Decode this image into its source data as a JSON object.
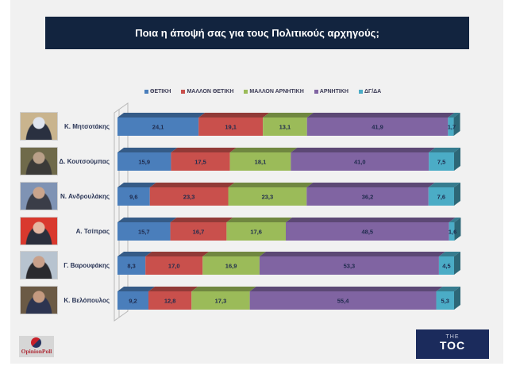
{
  "title": "Ποια η άποψή σας για τους Πολιτικούς αρχηγούς;",
  "chart_data": {
    "type": "bar",
    "orientation": "horizontal",
    "stacked": true,
    "percent": true,
    "title": "Ποια η άποψή σας για τους Πολιτικούς αρχηγούς;",
    "xlabel": "",
    "ylabel": "",
    "xlim": [
      0,
      100
    ],
    "grid": false,
    "legend_position": "top",
    "categories": [
      "Κ. Μητσοτάκης",
      "Δ. Κουτσούμπας",
      "Ν. Ανδρουλάκης",
      "Α. Τσίπρας",
      "Γ. Βαρουφάκης",
      "Κ. Βελόπουλος"
    ],
    "series": [
      {
        "name": "ΘΕΤΙΚΗ",
        "color": "#4a7ebb",
        "values": [
          24.1,
          15.9,
          9.6,
          15.7,
          8.3,
          9.2
        ],
        "labels": [
          "24,1",
          "15,9",
          "9,6",
          "15,7",
          "8,3",
          "9,2"
        ]
      },
      {
        "name": "ΜΑΛΛΟΝ ΘΕΤΙΚΗ",
        "color": "#c9504c",
        "values": [
          19.1,
          17.5,
          23.3,
          16.7,
          17.0,
          12.8
        ],
        "labels": [
          "19,1",
          "17,5",
          "23,3",
          "16,7",
          "17,0",
          "12,8"
        ]
      },
      {
        "name": "ΜΑΛΛΟΝ ΑΡΝΗΤΙΚΗ",
        "color": "#9bbb59",
        "values": [
          13.1,
          18.1,
          23.3,
          17.6,
          16.9,
          17.3
        ],
        "labels": [
          "13,1",
          "18,1",
          "23,3",
          "17,6",
          "16,9",
          "17,3"
        ]
      },
      {
        "name": "ΑΡΝΗΤΙΚΗ",
        "color": "#8064a2",
        "values": [
          41.9,
          41.0,
          36.2,
          48.5,
          53.3,
          55.4
        ],
        "labels": [
          "41,9",
          "41,0",
          "36,2",
          "48,5",
          "53,3",
          "55,4"
        ]
      },
      {
        "name": "ΔΓ/ΔΑ",
        "color": "#4bacc6",
        "values": [
          1.7,
          7.5,
          7.6,
          1.6,
          4.5,
          5.3
        ],
        "labels": [
          "1,7",
          "7,5",
          "7,6",
          "1,6",
          "4,5",
          "5,3"
        ]
      }
    ]
  },
  "leaders": [
    {
      "name": "Κ. Μητσοτάκης",
      "photo_colors": [
        "#c9b48e",
        "#2a3040",
        "#dfe4ee"
      ]
    },
    {
      "name": "Δ. Κουτσούμπας",
      "photo_colors": [
        "#6f6a4a",
        "#3b3a38",
        "#b9a088"
      ]
    },
    {
      "name": "Ν. Ανδρουλάκης",
      "photo_colors": [
        "#7f93b4",
        "#3a3d48",
        "#c9a48c"
      ]
    },
    {
      "name": "Α. Τσίπρας",
      "photo_colors": [
        "#d9392e",
        "#2b2f3c",
        "#e5b7a2"
      ]
    },
    {
      "name": "Γ. Βαρουφάκης",
      "photo_colors": [
        "#b7c3cf",
        "#2a2a2e",
        "#c8a08a"
      ]
    },
    {
      "name": "Κ. Βελόπουλος",
      "photo_colors": [
        "#6b5a45",
        "#2c3450",
        "#c49a80"
      ]
    }
  ],
  "logos": {
    "opinion_poll": "OpinionPoll",
    "the_toc_small": "THE",
    "the_toc_main": "TOC"
  }
}
